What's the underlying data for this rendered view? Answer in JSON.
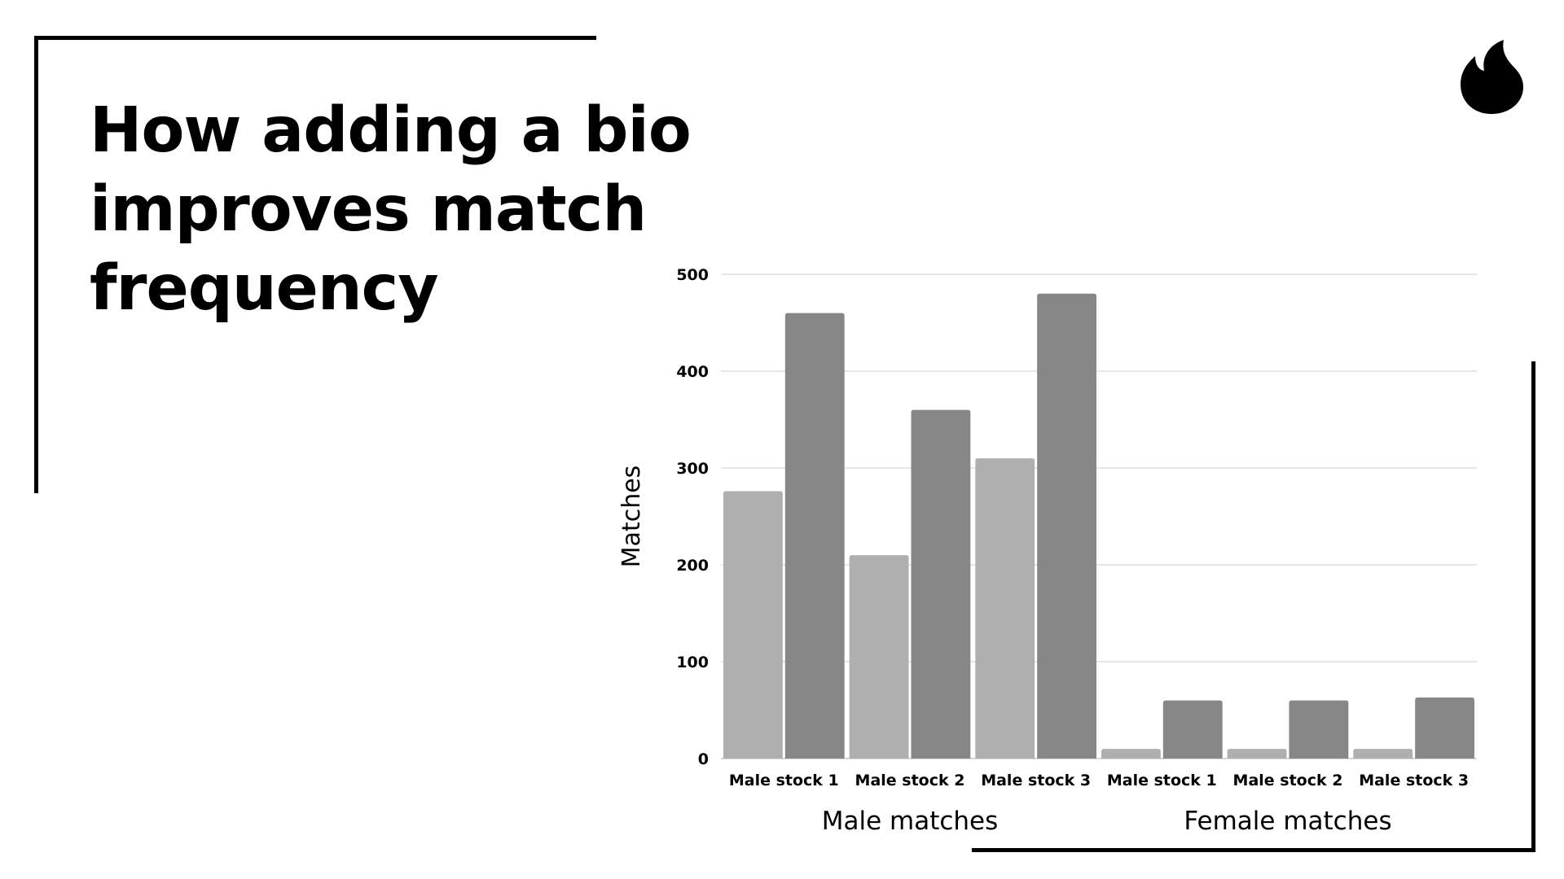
{
  "page": {
    "title": "How adding a bio improves match frequency",
    "logo_icon": "flame-icon"
  },
  "colors": {
    "frame": "#000000",
    "series_without_bio": "#afafaf",
    "series_with_bio": "#878787",
    "gridline": "#dddddd"
  },
  "chart_data": {
    "type": "bar",
    "ylabel": "Matches",
    "ylim": [
      0,
      500
    ],
    "yticks": [
      0,
      100,
      200,
      300,
      400,
      500
    ],
    "grid": true,
    "groups": [
      {
        "label": "Male matches",
        "categories": [
          "Male stock 1",
          "Male stock 2",
          "Male stock 3"
        ]
      },
      {
        "label": "Female matches",
        "categories": [
          "Male stock 1",
          "Male stock 2",
          "Male stock 3"
        ]
      }
    ],
    "categories": [
      "Male stock 1",
      "Male stock 2",
      "Male stock 3",
      "Male stock 1",
      "Male stock 2",
      "Male stock 3"
    ],
    "series": [
      {
        "values": [
          276,
          210,
          310,
          10,
          10,
          10
        ],
        "color": "#afafaf"
      },
      {
        "values": [
          460,
          360,
          480,
          60,
          60,
          63
        ],
        "color": "#878787"
      }
    ]
  }
}
